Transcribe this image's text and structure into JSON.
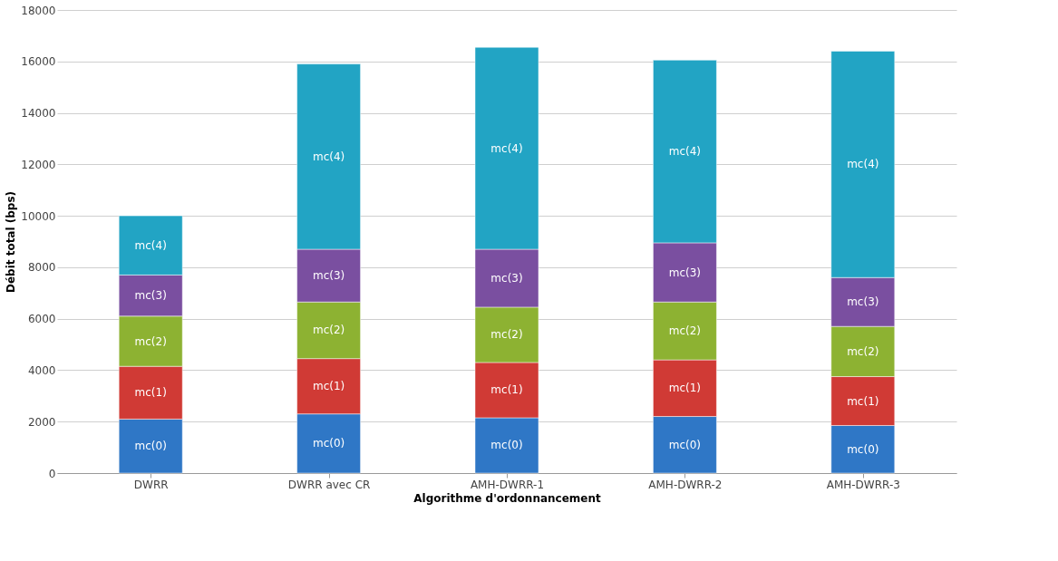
{
  "chart_data": {
    "type": "bar",
    "stacked": true,
    "xlabel": "Algorithme d'ordonnancement",
    "ylabel": "Débit total (bps)",
    "categories": [
      "DWRR",
      "DWRR avec CR",
      "AMH-DWRR-1",
      "AMH-DWRR-2",
      "AMH-DWRR-3"
    ],
    "series": [
      {
        "name": "mc(0)",
        "color": "#2f77c6",
        "values": [
          2100,
          2300,
          2150,
          2200,
          1850
        ]
      },
      {
        "name": "mc(1)",
        "color": "#d03a35",
        "values": [
          2050,
          2150,
          2150,
          2200,
          1900
        ]
      },
      {
        "name": "mc(2)",
        "color": "#8db232",
        "values": [
          1950,
          2200,
          2150,
          2250,
          1950
        ]
      },
      {
        "name": "mc(3)",
        "color": "#7a4fa0",
        "values": [
          1600,
          2050,
          2250,
          2300,
          1900
        ]
      },
      {
        "name": "mc(4)",
        "color": "#22a4c4",
        "values": [
          2300,
          7200,
          7850,
          7100,
          8800
        ]
      }
    ],
    "ylim": [
      0,
      18000
    ],
    "yticks": [
      0,
      2000,
      4000,
      6000,
      8000,
      10000,
      12000,
      14000,
      16000,
      18000
    ],
    "grid": "y",
    "legend": false
  }
}
